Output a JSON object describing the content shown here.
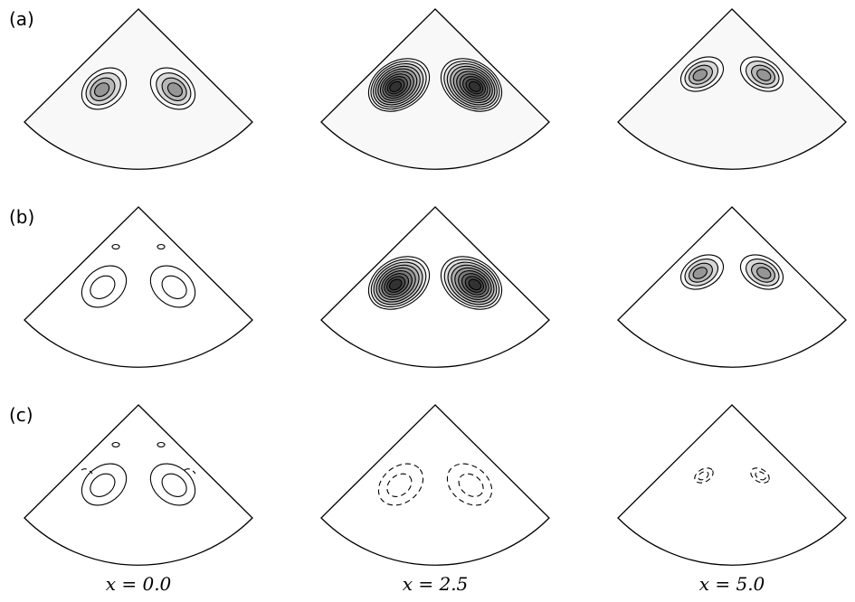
{
  "figure": {
    "row_labels": [
      "(a)",
      "(b)",
      "(c)"
    ],
    "column_labels": [
      "x = 0.0",
      "x = 2.5",
      "x = 5.0"
    ],
    "panels": [
      {
        "row": 0,
        "col": 0,
        "levels": 4,
        "size": "medium",
        "style": "solid",
        "shaded": true,
        "extra": "none"
      },
      {
        "row": 0,
        "col": 1,
        "levels": 10,
        "size": "large",
        "style": "solid",
        "shaded": true,
        "extra": "none"
      },
      {
        "row": 0,
        "col": 2,
        "levels": 4,
        "size": "small",
        "style": "solid",
        "shaded": true,
        "extra": "none"
      },
      {
        "row": 1,
        "col": 0,
        "levels": 2,
        "size": "medium",
        "style": "solid",
        "shaded": false,
        "extra": "small-spots"
      },
      {
        "row": 1,
        "col": 1,
        "levels": 9,
        "size": "large",
        "style": "solid",
        "shaded": true,
        "extra": "none"
      },
      {
        "row": 1,
        "col": 2,
        "levels": 4,
        "size": "small",
        "style": "solid",
        "shaded": true,
        "extra": "none"
      },
      {
        "row": 2,
        "col": 0,
        "levels": 2,
        "size": "medium",
        "style": "solid",
        "shaded": false,
        "extra": "spots-and-dashes"
      },
      {
        "row": 2,
        "col": 1,
        "levels": 2,
        "size": "medium",
        "style": "dashed",
        "shaded": false,
        "extra": "none"
      },
      {
        "row": 2,
        "col": 2,
        "levels": 2,
        "size": "tiny",
        "style": "dashed",
        "shaded": false,
        "extra": "none"
      }
    ]
  },
  "colors": {
    "sector_fill_row_a": "#f8f8f8",
    "sector_fill": "#ffffff",
    "line": "#000000"
  }
}
